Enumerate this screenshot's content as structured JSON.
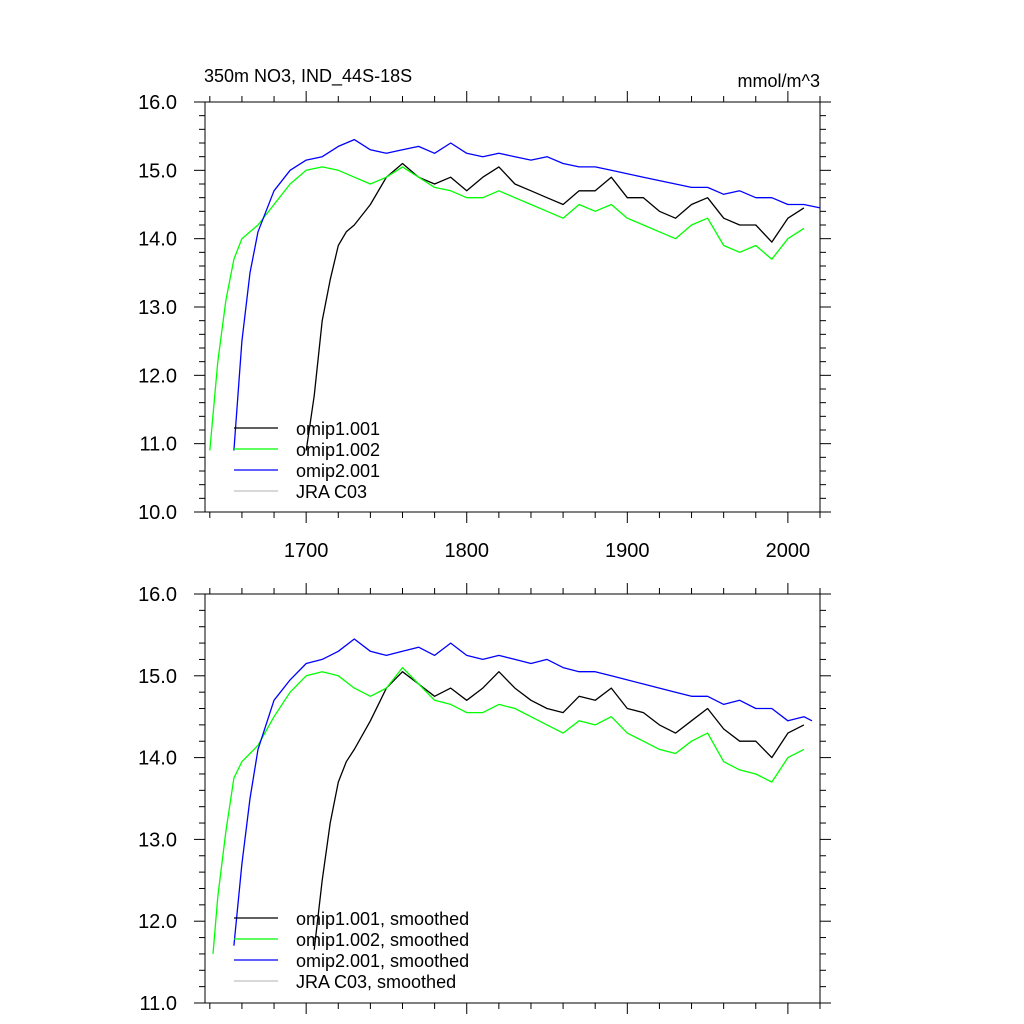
{
  "figure": {
    "title": "350m NO3, IND_44S-18S",
    "units": "mmol/m^3"
  },
  "chart_data": [
    {
      "type": "line",
      "xlim": [
        1637,
        2020
      ],
      "ylim": [
        10.0,
        16.0
      ],
      "x_ticks": [
        1700,
        1800,
        1900,
        2000
      ],
      "y_ticks": [
        10.0,
        11.0,
        12.0,
        13.0,
        14.0,
        15.0,
        16.0
      ],
      "legend_position": "bottom-left",
      "series": [
        {
          "name": "omip1.001",
          "color": "#000000",
          "x": [
            1700,
            1705,
            1710,
            1715,
            1720,
            1725,
            1730,
            1740,
            1750,
            1760,
            1770,
            1780,
            1790,
            1800,
            1810,
            1820,
            1830,
            1840,
            1850,
            1860,
            1870,
            1880,
            1890,
            1900,
            1910,
            1920,
            1930,
            1940,
            1950,
            1960,
            1970,
            1980,
            1990,
            2000,
            2010
          ],
          "y": [
            10.9,
            11.7,
            12.8,
            13.4,
            13.9,
            14.1,
            14.2,
            14.5,
            14.9,
            15.1,
            14.9,
            14.8,
            14.9,
            14.7,
            14.9,
            15.05,
            14.8,
            14.7,
            14.6,
            14.5,
            14.7,
            14.7,
            14.9,
            14.6,
            14.6,
            14.4,
            14.3,
            14.5,
            14.6,
            14.3,
            14.2,
            14.2,
            13.95,
            14.3,
            14.45
          ]
        },
        {
          "name": "omip1.002",
          "color": "#00ff00",
          "x": [
            1640,
            1645,
            1650,
            1655,
            1660,
            1665,
            1670,
            1680,
            1690,
            1700,
            1710,
            1720,
            1730,
            1740,
            1750,
            1760,
            1770,
            1780,
            1790,
            1800,
            1810,
            1820,
            1830,
            1840,
            1850,
            1860,
            1870,
            1880,
            1890,
            1900,
            1910,
            1920,
            1930,
            1940,
            1950,
            1960,
            1970,
            1980,
            1990,
            2000,
            2010
          ],
          "y": [
            10.9,
            12.2,
            13.1,
            13.7,
            14.0,
            14.1,
            14.2,
            14.5,
            14.8,
            15.0,
            15.05,
            15.0,
            14.9,
            14.8,
            14.9,
            15.05,
            14.9,
            14.75,
            14.7,
            14.6,
            14.6,
            14.7,
            14.6,
            14.5,
            14.4,
            14.3,
            14.5,
            14.4,
            14.5,
            14.3,
            14.2,
            14.1,
            14.0,
            14.2,
            14.3,
            13.9,
            13.8,
            13.9,
            13.7,
            14.0,
            14.15
          ]
        },
        {
          "name": "omip2.001",
          "color": "#0000ff",
          "x": [
            1655,
            1660,
            1665,
            1670,
            1680,
            1690,
            1700,
            1710,
            1720,
            1730,
            1740,
            1750,
            1760,
            1770,
            1780,
            1790,
            1800,
            1810,
            1820,
            1830,
            1840,
            1850,
            1860,
            1870,
            1880,
            1890,
            1900,
            1910,
            1920,
            1930,
            1940,
            1950,
            1960,
            1970,
            1980,
            1990,
            2000,
            2010,
            2020
          ],
          "y": [
            10.9,
            12.5,
            13.5,
            14.1,
            14.7,
            15.0,
            15.15,
            15.2,
            15.35,
            15.45,
            15.3,
            15.25,
            15.3,
            15.35,
            15.25,
            15.4,
            15.25,
            15.2,
            15.25,
            15.2,
            15.15,
            15.2,
            15.1,
            15.05,
            15.05,
            15.0,
            14.95,
            14.9,
            14.85,
            14.8,
            14.75,
            14.75,
            14.65,
            14.7,
            14.6,
            14.6,
            14.5,
            14.5,
            14.45
          ]
        },
        {
          "name": "JRA C03",
          "color": "#c0c0c0",
          "x": [],
          "y": []
        }
      ]
    },
    {
      "type": "line",
      "xlim": [
        1637,
        2020
      ],
      "ylim": [
        11.0,
        16.0
      ],
      "x_ticks": [
        1700,
        1800,
        1900,
        2000
      ],
      "y_ticks": [
        11.0,
        12.0,
        13.0,
        14.0,
        15.0,
        16.0
      ],
      "legend_position": "bottom-left",
      "series": [
        {
          "name": "omip1.001, smoothed",
          "color": "#000000",
          "x": [
            1705,
            1710,
            1715,
            1720,
            1725,
            1730,
            1740,
            1750,
            1760,
            1770,
            1780,
            1790,
            1800,
            1810,
            1820,
            1830,
            1840,
            1850,
            1860,
            1870,
            1880,
            1890,
            1900,
            1910,
            1920,
            1930,
            1940,
            1950,
            1960,
            1970,
            1980,
            1990,
            2000,
            2010
          ],
          "y": [
            11.65,
            12.5,
            13.2,
            13.7,
            13.95,
            14.1,
            14.45,
            14.85,
            15.05,
            14.9,
            14.75,
            14.85,
            14.7,
            14.85,
            15.05,
            14.85,
            14.7,
            14.6,
            14.55,
            14.75,
            14.7,
            14.85,
            14.6,
            14.55,
            14.4,
            14.3,
            14.45,
            14.6,
            14.35,
            14.2,
            14.2,
            14.0,
            14.3,
            14.4
          ]
        },
        {
          "name": "omip1.002, smoothed",
          "color": "#00ff00",
          "x": [
            1642,
            1645,
            1650,
            1655,
            1660,
            1665,
            1670,
            1680,
            1690,
            1700,
            1710,
            1720,
            1730,
            1740,
            1750,
            1760,
            1770,
            1780,
            1790,
            1800,
            1810,
            1820,
            1830,
            1840,
            1850,
            1860,
            1870,
            1880,
            1890,
            1900,
            1910,
            1920,
            1930,
            1940,
            1950,
            1960,
            1970,
            1980,
            1990,
            2000,
            2010
          ],
          "y": [
            11.6,
            12.3,
            13.1,
            13.75,
            13.95,
            14.05,
            14.15,
            14.5,
            14.8,
            15.0,
            15.05,
            15.0,
            14.85,
            14.75,
            14.85,
            15.1,
            14.9,
            14.7,
            14.65,
            14.55,
            14.55,
            14.65,
            14.6,
            14.5,
            14.4,
            14.3,
            14.45,
            14.4,
            14.5,
            14.3,
            14.2,
            14.1,
            14.05,
            14.2,
            14.3,
            13.95,
            13.85,
            13.8,
            13.7,
            14.0,
            14.1
          ]
        },
        {
          "name": "omip2.001, smoothed",
          "color": "#0000ff",
          "x": [
            1655,
            1660,
            1665,
            1670,
            1680,
            1690,
            1700,
            1710,
            1720,
            1730,
            1740,
            1750,
            1760,
            1770,
            1780,
            1790,
            1800,
            1810,
            1820,
            1830,
            1840,
            1850,
            1860,
            1870,
            1880,
            1890,
            1900,
            1910,
            1920,
            1930,
            1940,
            1950,
            1960,
            1970,
            1980,
            1990,
            2000,
            2010,
            2015
          ],
          "y": [
            11.7,
            12.7,
            13.5,
            14.1,
            14.7,
            14.95,
            15.15,
            15.2,
            15.3,
            15.45,
            15.3,
            15.25,
            15.3,
            15.35,
            15.25,
            15.4,
            15.25,
            15.2,
            15.25,
            15.2,
            15.15,
            15.2,
            15.1,
            15.05,
            15.05,
            15.0,
            14.95,
            14.9,
            14.85,
            14.8,
            14.75,
            14.75,
            14.65,
            14.7,
            14.6,
            14.6,
            14.45,
            14.5,
            14.45
          ]
        },
        {
          "name": "JRA C03, smoothed",
          "color": "#c0c0c0",
          "x": [],
          "y": []
        }
      ]
    }
  ]
}
